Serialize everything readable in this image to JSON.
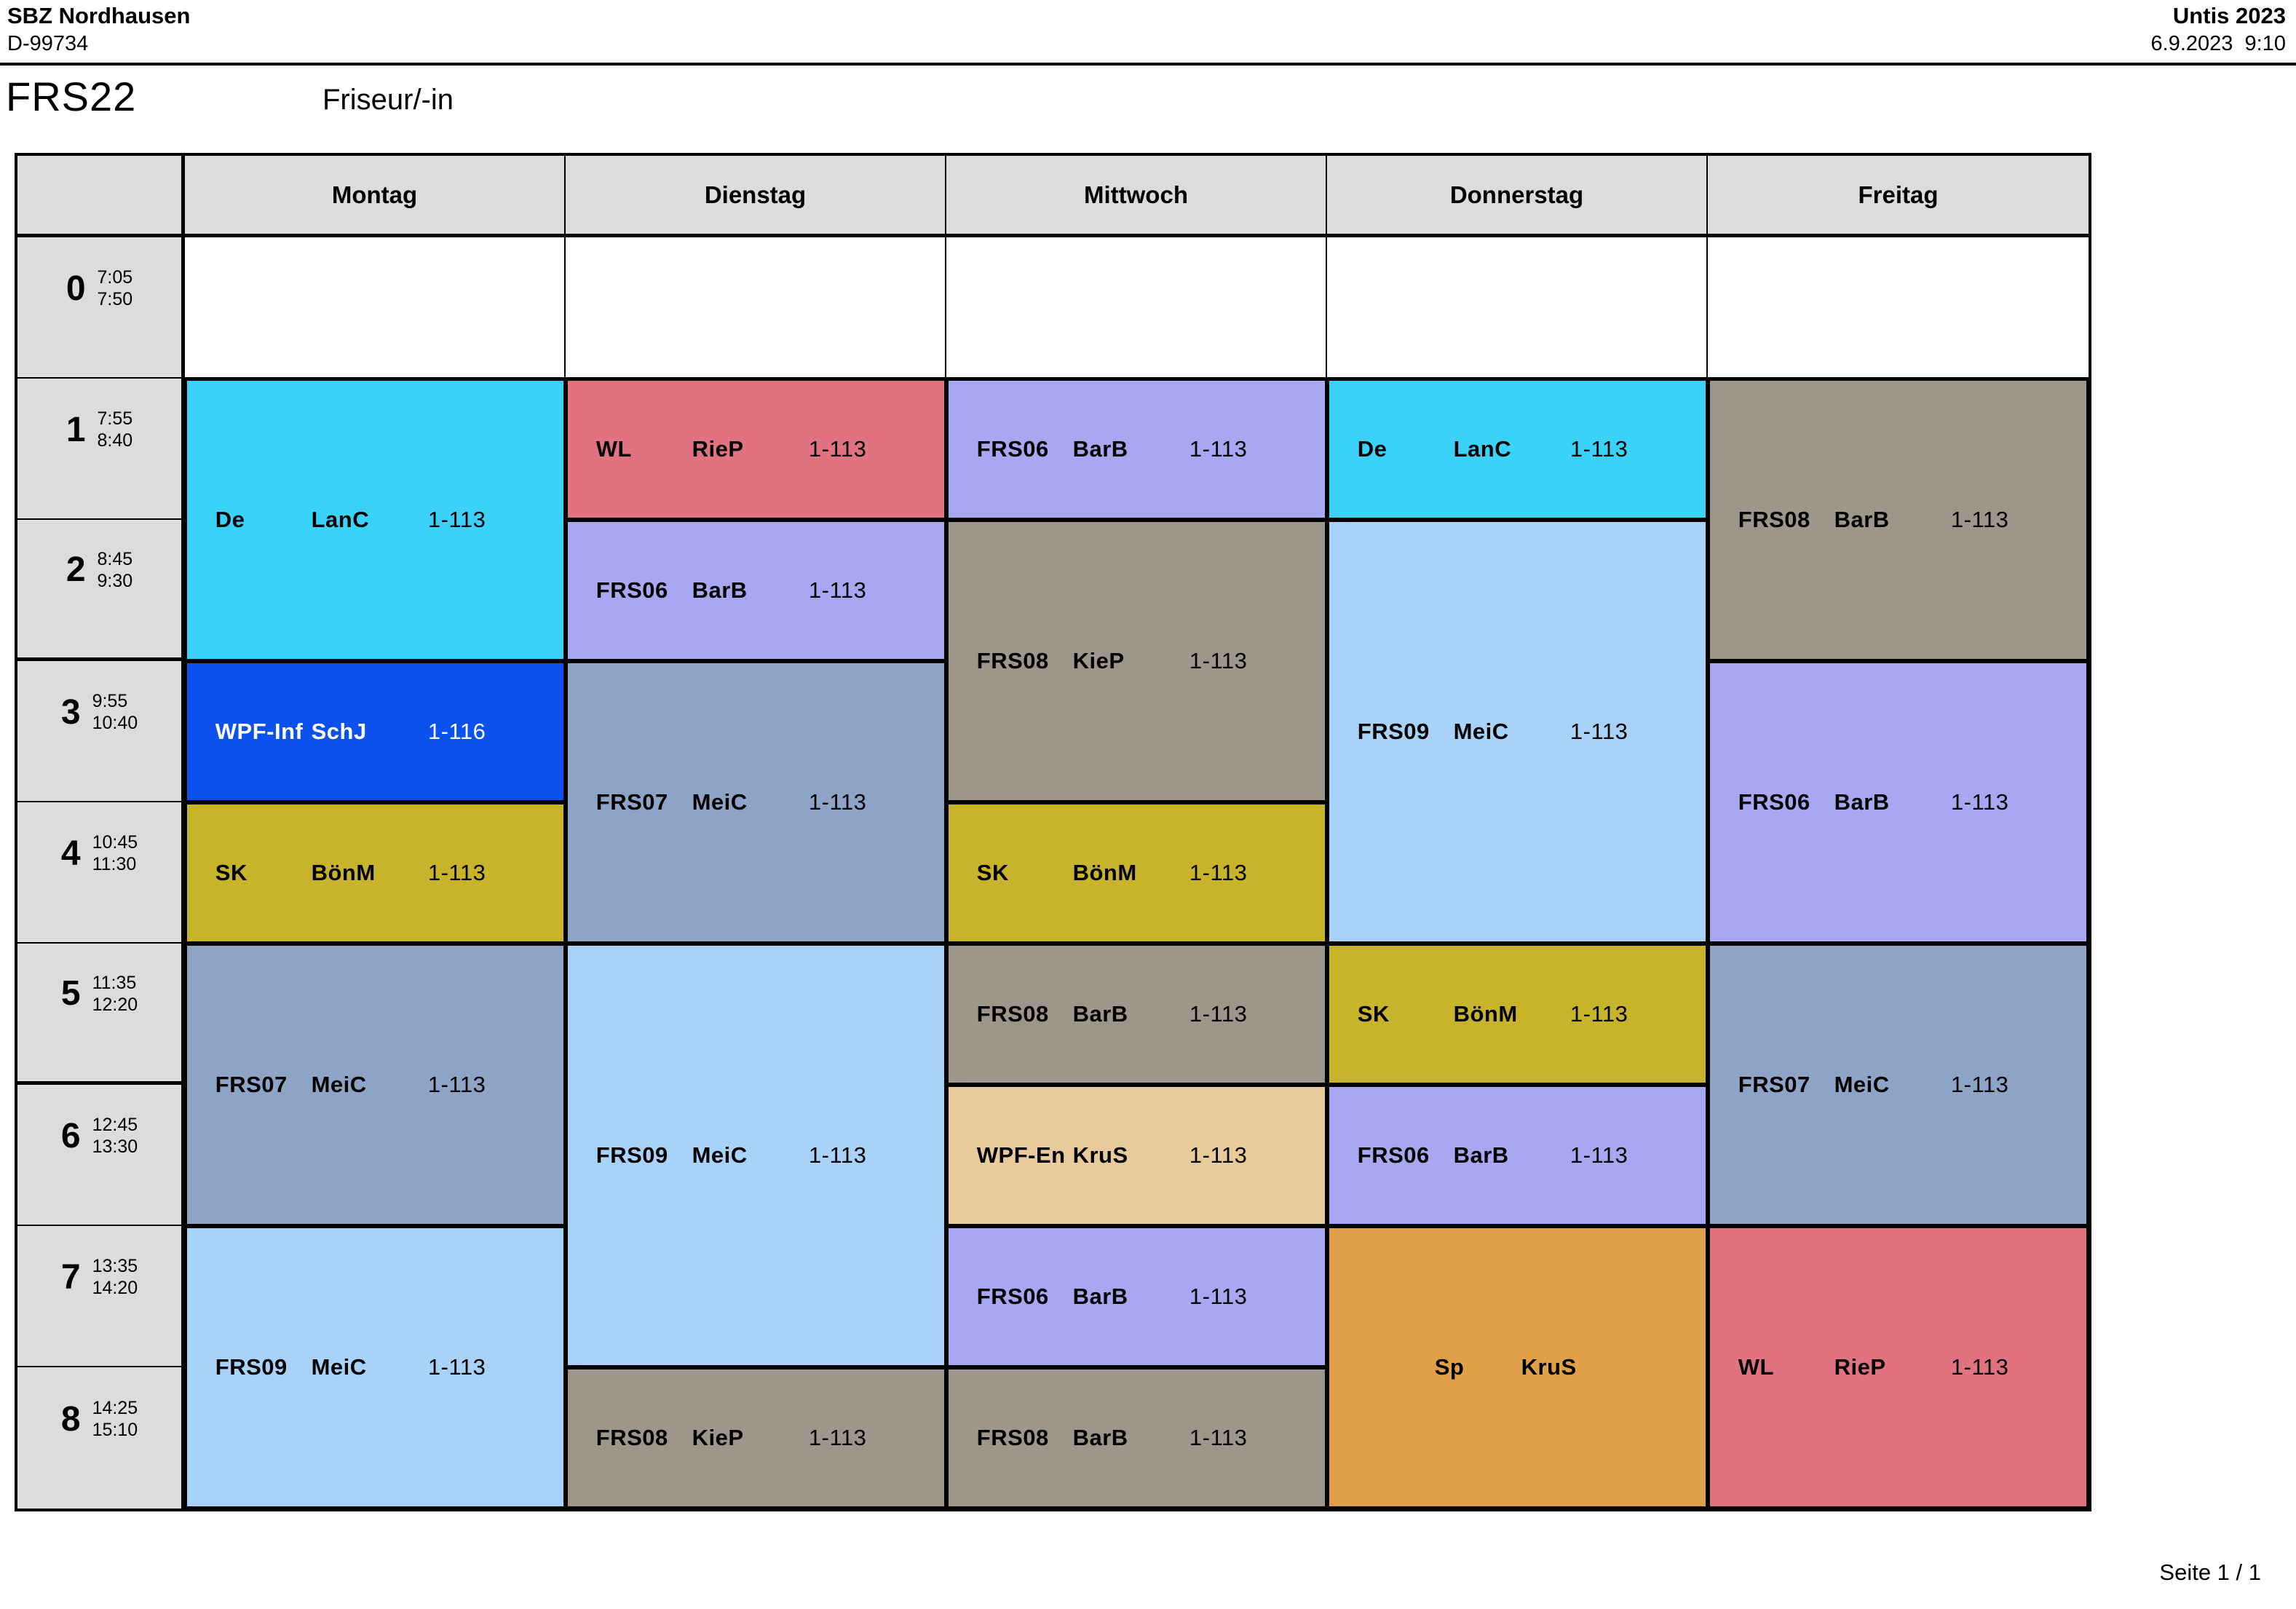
{
  "header": {
    "school_name": "SBZ Nordhausen",
    "school_id": "D-99734",
    "app_name": "Untis 2023",
    "print_datetime": "6.9.2023  9:10"
  },
  "title": {
    "class_code": "FRS22",
    "class_name": "Friseur/-in"
  },
  "footer": {
    "page_label": "Seite 1 / 1"
  },
  "palette": {
    "cyan": "#3bd2f9",
    "blue": "#0b51ee",
    "olive": "#c8b42b",
    "steel": "#8ea4c6",
    "light_blue": "#a9d2f9",
    "salmon": "#e0737f",
    "purple": "#a8a8f2",
    "gray_brown": "#9e968a",
    "tan": "#e9ca9b",
    "orange": "#dfa048",
    "head_gray": "#dcdcdc",
    "grid_line": "#000000"
  },
  "timetable": {
    "day_headers": [
      "Montag",
      "Dienstag",
      "Mittwoch",
      "Donnerstag",
      "Freitag"
    ],
    "periods": [
      {
        "num": "0",
        "start": "7:05",
        "end": "7:50"
      },
      {
        "num": "1",
        "start": "7:55",
        "end": "8:40"
      },
      {
        "num": "2",
        "start": "8:45",
        "end": "9:30"
      },
      {
        "num": "3",
        "start": "9:55",
        "end": "10:40"
      },
      {
        "num": "4",
        "start": "10:45",
        "end": "11:30"
      },
      {
        "num": "5",
        "start": "11:35",
        "end": "12:20"
      },
      {
        "num": "6",
        "start": "12:45",
        "end": "13:30"
      },
      {
        "num": "7",
        "start": "13:35",
        "end": "14:20"
      },
      {
        "num": "8",
        "start": "14:25",
        "end": "15:10"
      }
    ],
    "lessons": [
      {
        "day": 0,
        "period": 1,
        "span": 2,
        "subject": "De",
        "teacher": "LanC",
        "room": "1-113",
        "color": "cyan",
        "text": "#000000"
      },
      {
        "day": 0,
        "period": 3,
        "span": 1,
        "subject": "WPF-Inf",
        "teacher": "SchJ",
        "room": "1-116",
        "color": "blue",
        "text": "#ffffff"
      },
      {
        "day": 0,
        "period": 4,
        "span": 1,
        "subject": "SK",
        "teacher": "BönM",
        "room": "1-113",
        "color": "olive",
        "text": "#000000"
      },
      {
        "day": 0,
        "period": 5,
        "span": 2,
        "subject": "FRS07",
        "teacher": "MeiC",
        "room": "1-113",
        "color": "steel",
        "text": "#000000"
      },
      {
        "day": 0,
        "period": 7,
        "span": 2,
        "subject": "FRS09",
        "teacher": "MeiC",
        "room": "1-113",
        "color": "light_blue",
        "text": "#000000"
      },
      {
        "day": 1,
        "period": 1,
        "span": 1,
        "subject": "WL",
        "teacher": "RieP",
        "room": "1-113",
        "color": "salmon",
        "text": "#000000"
      },
      {
        "day": 1,
        "period": 2,
        "span": 1,
        "subject": "FRS06",
        "teacher": "BarB",
        "room": "1-113",
        "color": "purple",
        "text": "#000000"
      },
      {
        "day": 1,
        "period": 3,
        "span": 2,
        "subject": "FRS07",
        "teacher": "MeiC",
        "room": "1-113",
        "color": "steel",
        "text": "#000000"
      },
      {
        "day": 1,
        "period": 5,
        "span": 3,
        "subject": "FRS09",
        "teacher": "MeiC",
        "room": "1-113",
        "color": "light_blue",
        "text": "#000000"
      },
      {
        "day": 1,
        "period": 8,
        "span": 1,
        "subject": "FRS08",
        "teacher": "KieP",
        "room": "1-113",
        "color": "gray_brown",
        "text": "#000000"
      },
      {
        "day": 2,
        "period": 1,
        "span": 1,
        "subject": "FRS06",
        "teacher": "BarB",
        "room": "1-113",
        "color": "purple",
        "text": "#000000"
      },
      {
        "day": 2,
        "period": 2,
        "span": 2,
        "subject": "FRS08",
        "teacher": "KieP",
        "room": "1-113",
        "color": "gray_brown",
        "text": "#000000"
      },
      {
        "day": 2,
        "period": 4,
        "span": 1,
        "subject": "SK",
        "teacher": "BönM",
        "room": "1-113",
        "color": "olive",
        "text": "#000000"
      },
      {
        "day": 2,
        "period": 5,
        "span": 1,
        "subject": "FRS08",
        "teacher": "BarB",
        "room": "1-113",
        "color": "gray_brown",
        "text": "#000000"
      },
      {
        "day": 2,
        "period": 6,
        "span": 1,
        "subject": "WPF-En",
        "teacher": "KruS",
        "room": "1-113",
        "color": "tan",
        "text": "#000000"
      },
      {
        "day": 2,
        "period": 7,
        "span": 1,
        "subject": "FRS06",
        "teacher": "BarB",
        "room": "1-113",
        "color": "purple",
        "text": "#000000"
      },
      {
        "day": 2,
        "period": 8,
        "span": 1,
        "subject": "FRS08",
        "teacher": "BarB",
        "room": "1-113",
        "color": "gray_brown",
        "text": "#000000"
      },
      {
        "day": 3,
        "period": 1,
        "span": 1,
        "subject": "De",
        "teacher": "LanC",
        "room": "1-113",
        "color": "cyan",
        "text": "#000000"
      },
      {
        "day": 3,
        "period": 2,
        "span": 3,
        "subject": "FRS09",
        "teacher": "MeiC",
        "room": "1-113",
        "color": "light_blue",
        "text": "#000000"
      },
      {
        "day": 3,
        "period": 5,
        "span": 1,
        "subject": "SK",
        "teacher": "BönM",
        "room": "1-113",
        "color": "olive",
        "text": "#000000"
      },
      {
        "day": 3,
        "period": 6,
        "span": 1,
        "subject": "FRS06",
        "teacher": "BarB",
        "room": "1-113",
        "color": "purple",
        "text": "#000000"
      },
      {
        "day": 3,
        "period": 7,
        "span": 2,
        "subject": "Sp",
        "teacher": "KruS",
        "room": "",
        "color": "orange",
        "text": "#000000"
      },
      {
        "day": 4,
        "period": 1,
        "span": 2,
        "subject": "FRS08",
        "teacher": "BarB",
        "room": "1-113",
        "color": "gray_brown",
        "text": "#000000"
      },
      {
        "day": 4,
        "period": 3,
        "span": 2,
        "subject": "FRS06",
        "teacher": "BarB",
        "room": "1-113",
        "color": "purple",
        "text": "#000000"
      },
      {
        "day": 4,
        "period": 5,
        "span": 2,
        "subject": "FRS07",
        "teacher": "MeiC",
        "room": "1-113",
        "color": "steel",
        "text": "#000000"
      },
      {
        "day": 4,
        "period": 7,
        "span": 2,
        "subject": "WL",
        "teacher": "RieP",
        "room": "1-113",
        "color": "salmon",
        "text": "#000000"
      }
    ]
  }
}
